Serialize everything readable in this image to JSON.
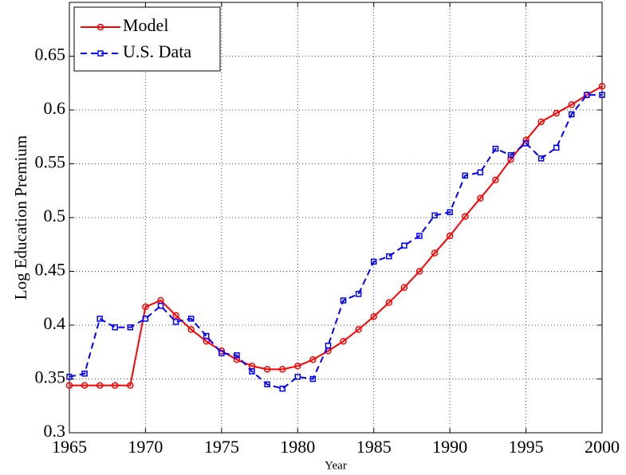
{
  "chart_data": {
    "type": "line",
    "xlabel": "Year",
    "ylabel": "Log Education Premium",
    "x": [
      1965,
      1966,
      1967,
      1968,
      1969,
      1970,
      1971,
      1972,
      1973,
      1974,
      1975,
      1976,
      1977,
      1978,
      1979,
      1980,
      1981,
      1982,
      1983,
      1984,
      1985,
      1986,
      1987,
      1988,
      1989,
      1990,
      1991,
      1992,
      1993,
      1994,
      1995,
      1996,
      1997,
      1998,
      1999,
      2000
    ],
    "series": [
      {
        "name": "Model",
        "color": "#ff0000",
        "marker": "circle",
        "dash": "solid",
        "values": [
          0.344,
          0.344,
          0.344,
          0.344,
          0.344,
          0.417,
          0.423,
          0.409,
          0.396,
          0.385,
          0.376,
          0.368,
          0.362,
          0.359,
          0.359,
          0.362,
          0.368,
          0.376,
          0.385,
          0.396,
          0.408,
          0.421,
          0.435,
          0.45,
          0.467,
          0.483,
          0.501,
          0.518,
          0.535,
          0.554,
          0.572,
          0.589,
          0.597,
          0.605,
          0.614,
          0.622
        ]
      },
      {
        "name": "U.S. Data",
        "color": "#0000ff",
        "marker": "square",
        "dash": "dashed",
        "values": [
          0.352,
          0.355,
          0.406,
          0.398,
          0.398,
          0.406,
          0.418,
          0.403,
          0.406,
          0.39,
          0.374,
          0.372,
          0.357,
          0.345,
          0.341,
          0.352,
          0.35,
          0.381,
          0.423,
          0.429,
          0.459,
          0.464,
          0.474,
          0.483,
          0.502,
          0.505,
          0.539,
          0.542,
          0.564,
          0.558,
          0.569,
          0.555,
          0.565,
          0.596,
          0.614,
          0.614
        ]
      }
    ],
    "xlim": [
      1965,
      2000
    ],
    "xticks": [
      1965,
      1970,
      1975,
      1980,
      1985,
      1990,
      1995,
      2000
    ],
    "ylim": [
      0.3,
      0.7
    ],
    "yticks": [
      0.3,
      0.35,
      0.4,
      0.45,
      0.5,
      0.55,
      0.6,
      0.65
    ],
    "grid": true,
    "legend": "upper left"
  }
}
